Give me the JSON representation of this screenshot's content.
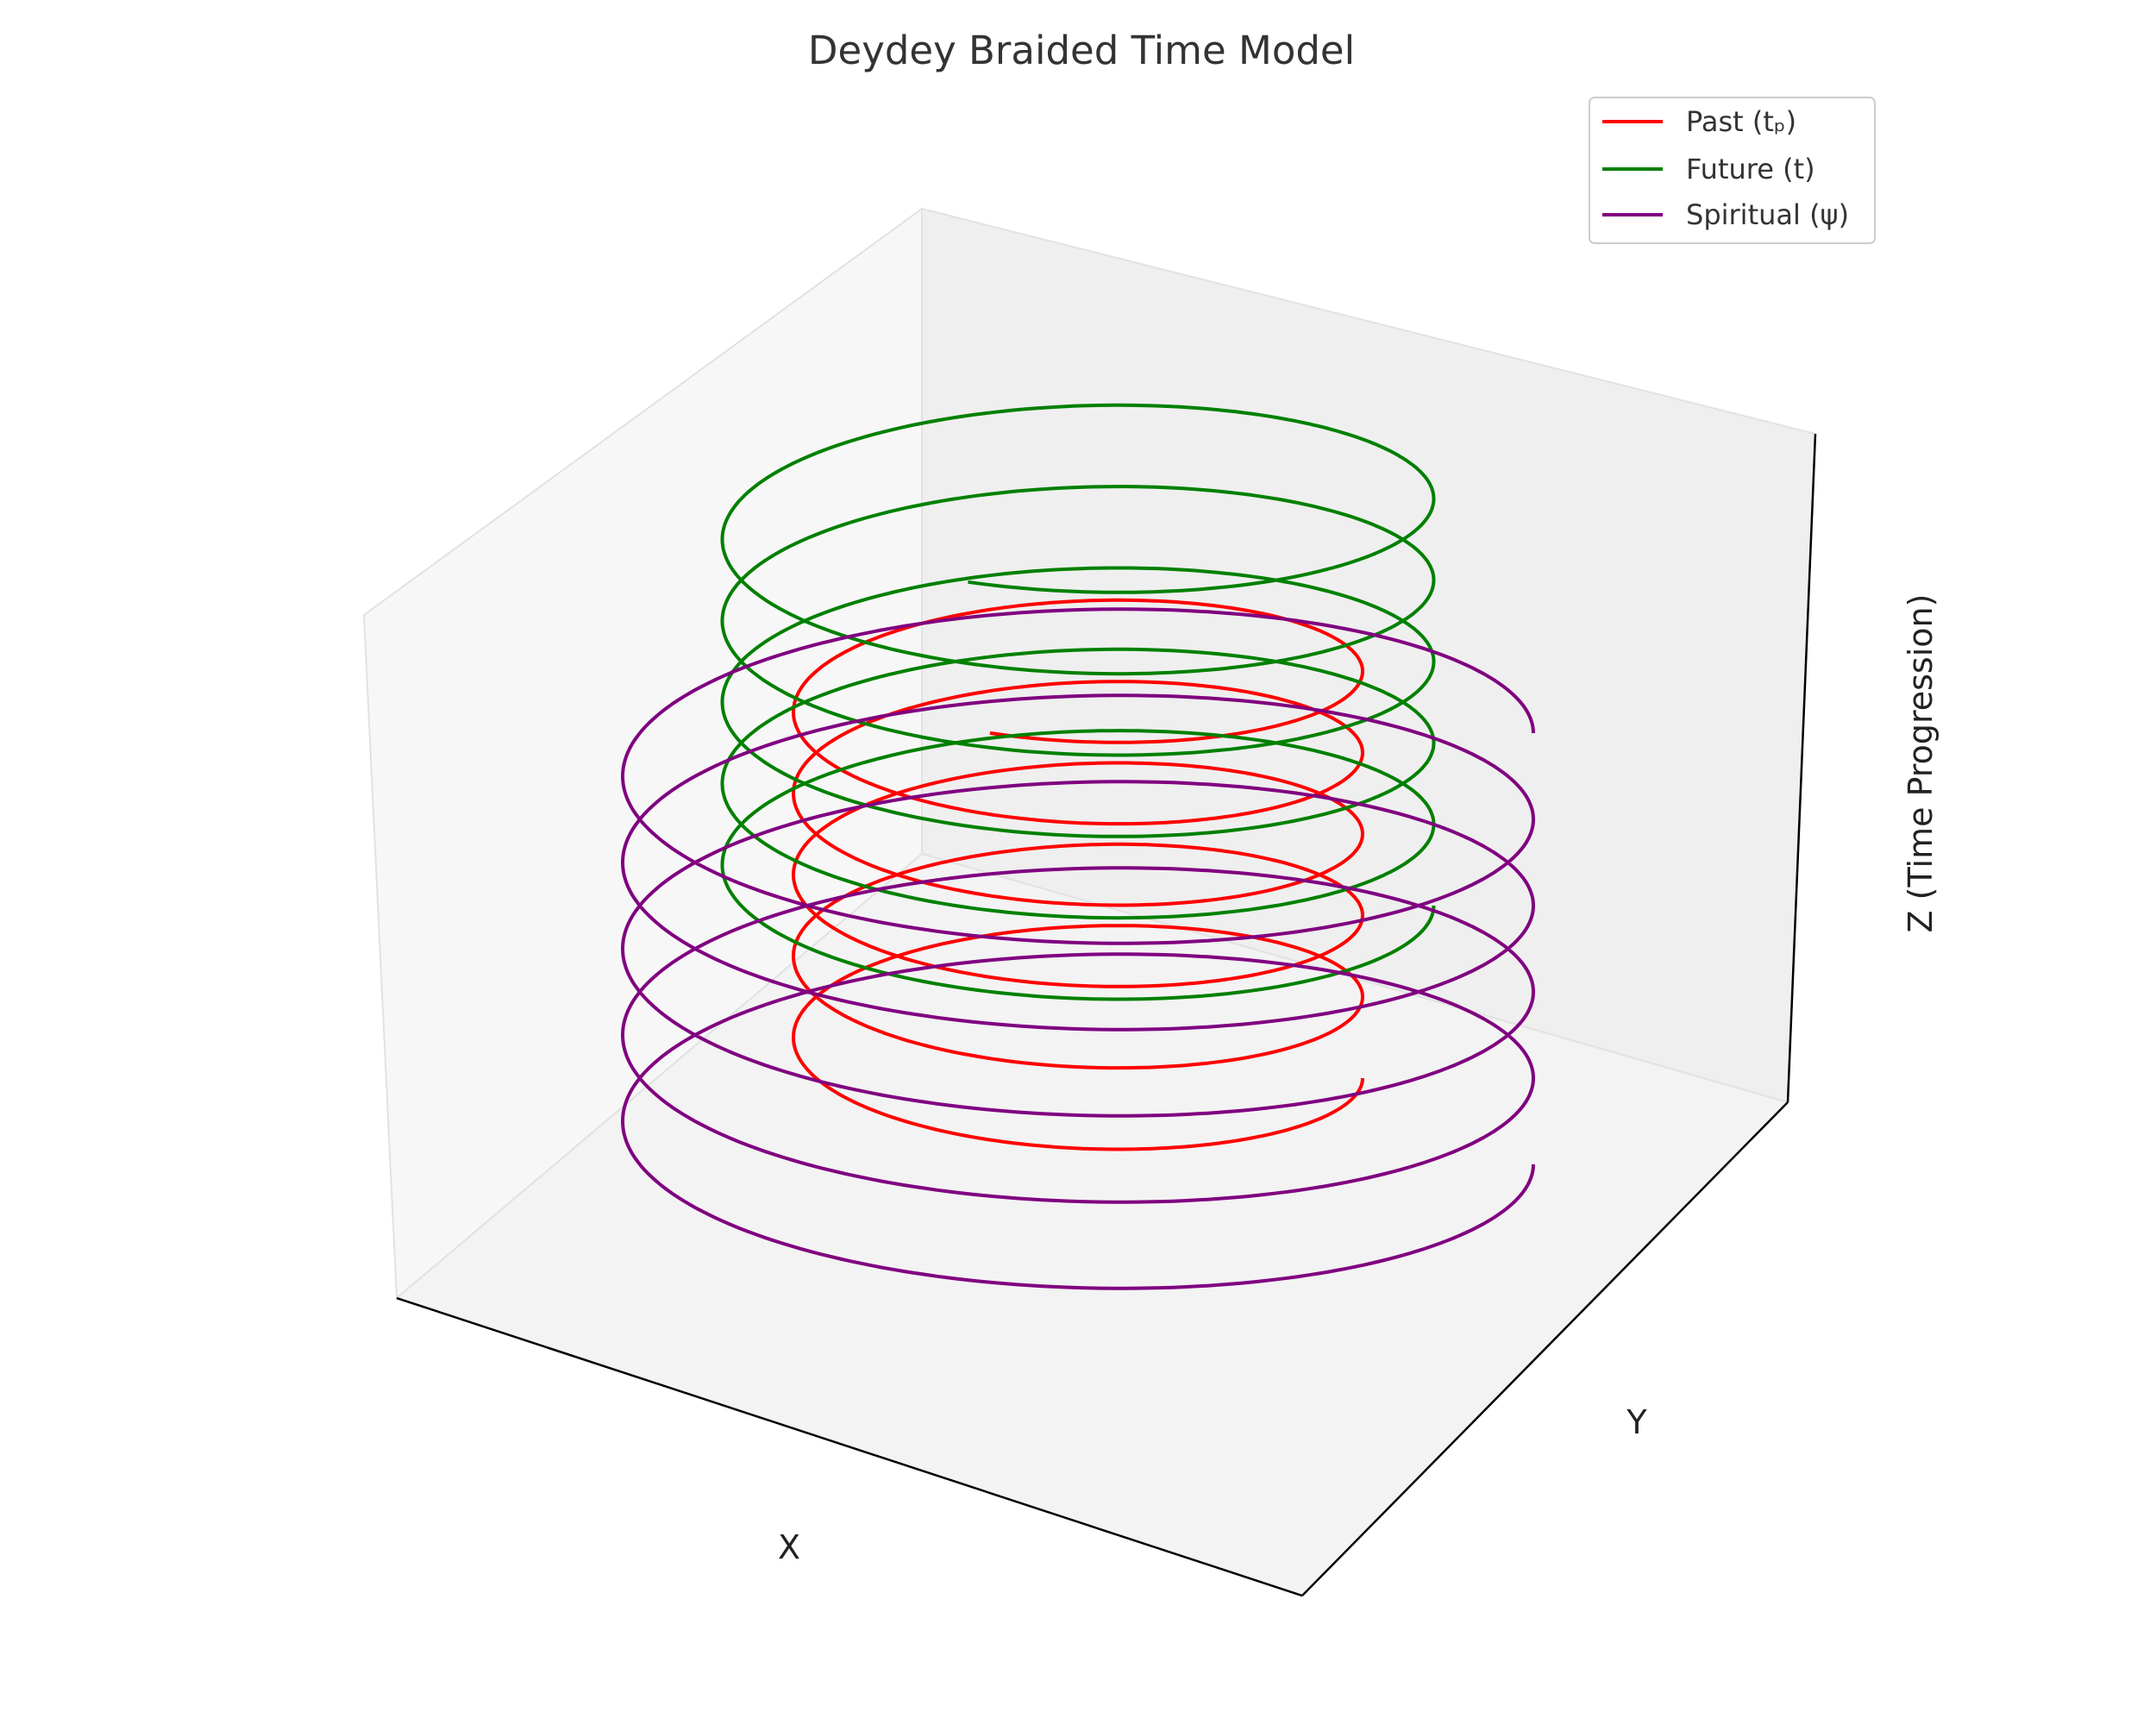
{
  "chart_data": {
    "type": "line",
    "projection": "3d",
    "title": "Deydey Braided Time Model",
    "xlabel": "X",
    "ylabel": "Y",
    "zlabel": "Z (Time Progression)",
    "ticks": "hidden",
    "grid": false,
    "legend_position": "top-right",
    "series": [
      {
        "name": "Past (tₚ)",
        "color": "#ff0000",
        "radius": 1.0,
        "turns": 5.3,
        "z_range": [
          0.0,
          5.0
        ],
        "draw_order": 1
      },
      {
        "name": "Future (t⁩)",
        "color": "#008000",
        "radius": 1.25,
        "turns": 5.3,
        "z_range": [
          2.0,
          7.0
        ],
        "draw_order": 2
      },
      {
        "name": "Spiritual (ψ)",
        "color": "#800080",
        "radius": 1.6,
        "turns": 5.0,
        "z_range": [
          -1.0,
          4.0
        ],
        "draw_order": 3
      }
    ]
  },
  "legend": {
    "items": [
      {
        "label": "Past (tₚ)",
        "color": "#ff0000"
      },
      {
        "label": "Future (t⁩)",
        "color": "#008000"
      },
      {
        "label": "Spiritual (ψ)",
        "color": "#800080"
      }
    ]
  }
}
